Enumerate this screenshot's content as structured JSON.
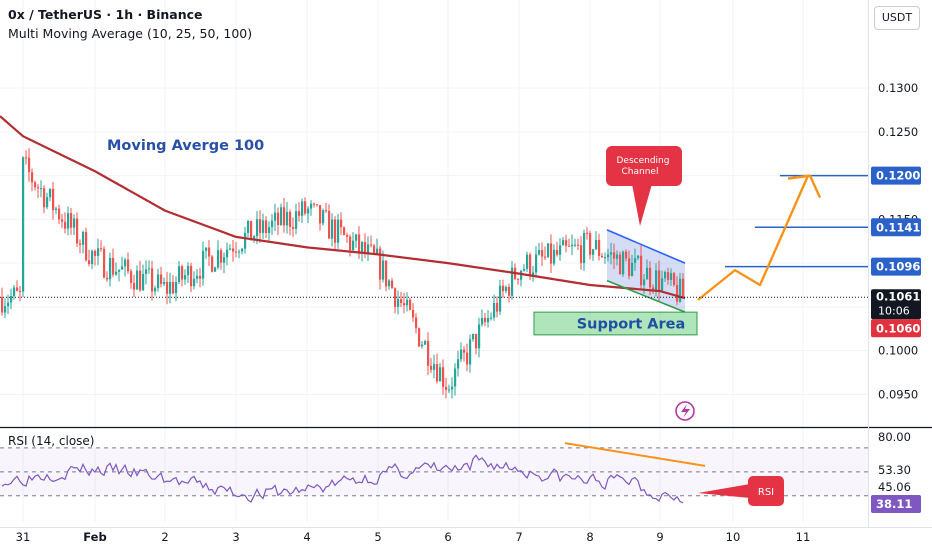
{
  "header": {
    "symbol_line": "0x / TetherUS · 1h · Binance",
    "indicator_line": "Multi Moving Average (10, 25, 50, 100)",
    "currency_button": "USDT"
  },
  "annotations": {
    "ma_label": "Moving Averge 100",
    "channel_label_1": "Descending",
    "channel_label_2": "Channel",
    "support_label": "Support Area",
    "rsi_label": "RSI"
  },
  "price_axis": {
    "ticks": [
      "0.1300",
      "0.1250",
      "0.1200",
      "0.1150",
      "0.1100",
      "0.1050",
      "0.1000",
      "0.0950"
    ],
    "ylim": [
      0.0915,
      0.1355
    ]
  },
  "price_tags": {
    "current": "0.1061",
    "countdown": "10:06",
    "low_tag": "0.1060",
    "target_1": "0.1096",
    "target_2": "0.1141",
    "target_3": "0.1200"
  },
  "rsi": {
    "title": "RSI (14, close)",
    "ticks": [
      "80.00",
      "53.30",
      "45.06"
    ],
    "current": "38.11",
    "ylim": [
      8,
      85
    ],
    "bands": [
      70,
      30
    ]
  },
  "time_axis": {
    "labels": [
      "31",
      "Feb",
      "2",
      "3",
      "4",
      "5",
      "6",
      "7",
      "8",
      "9",
      "10",
      "11"
    ]
  },
  "colors": {
    "up": "#26a69a",
    "down": "#ef5350",
    "ma100": "#b22e32",
    "target": "#2a62c9",
    "projection": "#f7931a",
    "rsi_line": "#7e57c2",
    "annotation_red": "#e33345",
    "support_green": "#2e9c4a"
  },
  "chart_data": {
    "type": "candlestick",
    "series_name": "0x / TetherUS",
    "x_axis_labels": [
      "31",
      "Feb",
      "2",
      "3",
      "4",
      "5",
      "6",
      "7",
      "8",
      "9",
      "10",
      "11"
    ],
    "close_path": [
      [
        "31",
        0.121
      ],
      [
        "Feb",
        0.1105
      ],
      [
        "2",
        0.107
      ],
      [
        "3",
        0.1125
      ],
      [
        "4",
        0.116
      ],
      [
        "5",
        0.11
      ],
      [
        "6",
        0.096
      ],
      [
        "7",
        0.1095
      ],
      [
        "8",
        0.112
      ],
      [
        "9",
        0.108
      ]
    ],
    "current_price": 0.1061,
    "moving_average_100": [
      [
        "31",
        0.1245
      ],
      [
        "Feb",
        0.1205
      ],
      [
        "2",
        0.116
      ],
      [
        "3",
        0.113
      ],
      [
        "4",
        0.1118
      ],
      [
        "5",
        0.111
      ],
      [
        "6",
        0.11
      ],
      [
        "7",
        0.1088
      ],
      [
        "8",
        0.1075
      ],
      [
        "9",
        0.1068
      ]
    ],
    "support_area": [
      0.1018,
      0.1044
    ],
    "targets": [
      0.1096,
      0.1141,
      0.12
    ],
    "projection_path": [
      [
        "9",
        0.1058
      ],
      [
        "10",
        0.1092
      ],
      [
        "10",
        0.1075
      ],
      [
        "11",
        0.12
      ]
    ],
    "rsi_current": 38.11
  }
}
